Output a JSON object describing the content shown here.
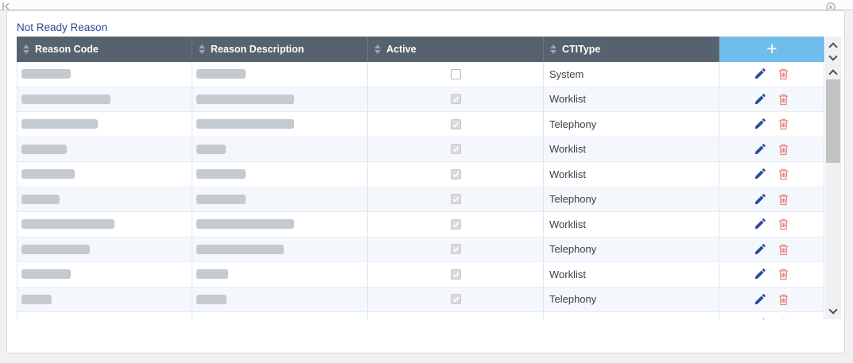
{
  "topbar": {
    "collapse_icon": "collapse-left",
    "close_icon": "close"
  },
  "panel": {
    "title": "Not Ready Reason"
  },
  "table": {
    "headers": [
      "Reason Code",
      "Reason Description",
      "Active",
      "CTIType"
    ],
    "add_button": "+",
    "rows": [
      {
        "reason_code_redacted": true,
        "code_w": 62,
        "desc_w": 62,
        "active": false,
        "cti": "System"
      },
      {
        "reason_code_redacted": true,
        "code_w": 112,
        "desc_w": 123,
        "active": true,
        "cti": "Worklist"
      },
      {
        "reason_code_redacted": true,
        "code_w": 96,
        "desc_w": 123,
        "active": true,
        "cti": "Telephony"
      },
      {
        "reason_code_redacted": true,
        "code_w": 57,
        "desc_w": 37,
        "active": true,
        "cti": "Worklist"
      },
      {
        "reason_code_redacted": true,
        "code_w": 67,
        "desc_w": 62,
        "active": true,
        "cti": "Worklist"
      },
      {
        "reason_code_redacted": true,
        "code_w": 48,
        "desc_w": 62,
        "active": true,
        "cti": "Telephony"
      },
      {
        "reason_code_redacted": true,
        "code_w": 117,
        "desc_w": 123,
        "active": true,
        "cti": "Worklist"
      },
      {
        "reason_code_redacted": true,
        "code_w": 86,
        "desc_w": 110,
        "active": true,
        "cti": "Telephony"
      },
      {
        "reason_code_redacted": true,
        "code_w": 62,
        "desc_w": 40,
        "active": true,
        "cti": "Worklist"
      },
      {
        "reason_code_redacted": true,
        "code_w": 38,
        "desc_w": 38,
        "active": true,
        "cti": "Telephony"
      }
    ],
    "partial_row": {
      "reason_code_hint": "il. ili",
      "reason_description_hint": "i.",
      "active": true,
      "cti_hint": "il"
    }
  },
  "colors": {
    "title": "#2D4596",
    "header_bg": "#57626F",
    "add_button_bg": "#70BDEB",
    "row_alt_bg": "#F4F8FD",
    "redacted_pill": "#C5CAD1",
    "edit_icon": "#2B4A9B",
    "delete_icon": "#E8837E"
  }
}
